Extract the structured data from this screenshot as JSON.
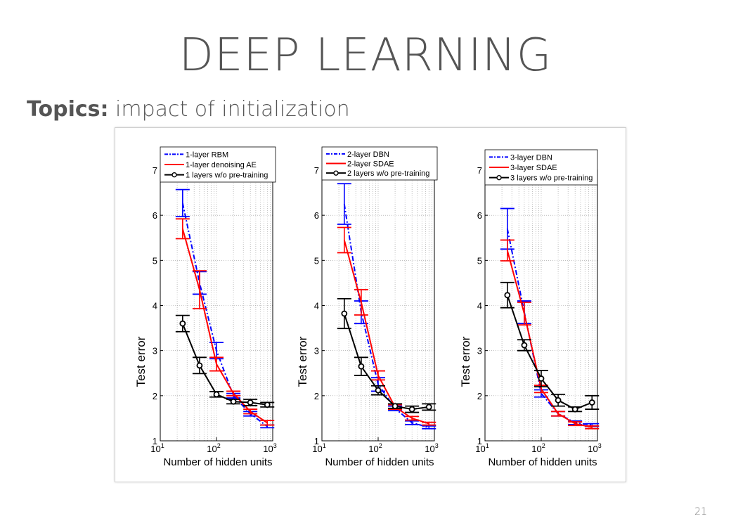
{
  "slide": {
    "title": "DEEP LEARNING",
    "topics_label": "Topics:",
    "topics_text": "impact of initialization",
    "page_number": "21"
  },
  "colors": {
    "blue": "#0000ff",
    "red": "#ff0000",
    "black": "#000000",
    "text_gray": "#555555"
  },
  "chart_data": [
    {
      "type": "line",
      "xscale": "log",
      "xlim": [
        10,
        1000
      ],
      "ylim": [
        1,
        7
      ],
      "x_ticks": [
        10,
        100,
        1000
      ],
      "y_ticks": [
        1,
        2,
        3,
        4,
        5,
        6,
        7
      ],
      "xlabel": "Number of hidden units",
      "ylabel": "Test error",
      "grid": true,
      "legend_position": "top",
      "series": [
        {
          "name": "1-layer RBM",
          "color": "#0000ff",
          "style": "dashdot",
          "marker": "none",
          "x": [
            25,
            50,
            100,
            200,
            400,
            800
          ],
          "y": [
            6.27,
            4.5,
            3.0,
            2.0,
            1.6,
            1.32
          ],
          "err": [
            0.3,
            0.25,
            0.18,
            0.05,
            0.05,
            0.03
          ]
        },
        {
          "name": "1-layer denoising AE",
          "color": "#ff0000",
          "style": "solid",
          "marker": "none",
          "x": [
            25,
            50,
            100,
            200,
            400,
            800
          ],
          "y": [
            5.7,
            4.35,
            2.7,
            2.05,
            1.65,
            1.4
          ],
          "err": [
            0.22,
            0.42,
            0.15,
            0.05,
            0.05,
            0.05
          ]
        },
        {
          "name": "1 layers w/o pre-training",
          "color": "#000000",
          "style": "solid",
          "marker": "circle",
          "x": [
            25,
            50,
            100,
            200,
            400,
            800
          ],
          "y": [
            3.6,
            2.67,
            2.03,
            1.87,
            1.85,
            1.8
          ],
          "err": [
            0.18,
            0.18,
            0.06,
            0.05,
            0.07,
            0.05
          ]
        }
      ]
    },
    {
      "type": "line",
      "xscale": "log",
      "xlim": [
        10,
        1000
      ],
      "ylim": [
        1,
        7
      ],
      "x_ticks": [
        10,
        100,
        1000
      ],
      "y_ticks": [
        1,
        2,
        3,
        4,
        5,
        6,
        7
      ],
      "xlabel": "Number of hidden units",
      "ylabel": "Test error",
      "grid": true,
      "legend_position": "top",
      "series": [
        {
          "name": "2-layer DBN",
          "color": "#0000ff",
          "style": "dashdot",
          "marker": "none",
          "x": [
            25,
            50,
            100,
            200,
            400,
            800
          ],
          "y": [
            6.25,
            3.85,
            2.25,
            1.72,
            1.4,
            1.3
          ],
          "err": [
            0.45,
            0.25,
            0.15,
            0.05,
            0.04,
            0.03
          ]
        },
        {
          "name": "2-layer SDAE",
          "color": "#ff0000",
          "style": "solid",
          "marker": "none",
          "x": [
            25,
            50,
            100,
            200,
            400,
            800
          ],
          "y": [
            5.45,
            4.07,
            2.45,
            1.75,
            1.5,
            1.38
          ],
          "err": [
            0.28,
            0.28,
            0.1,
            0.05,
            0.04,
            0.03
          ]
        },
        {
          "name": "2 layers w/o pre-training",
          "color": "#000000",
          "style": "solid",
          "marker": "circle",
          "x": [
            25,
            50,
            100,
            200,
            400,
            800
          ],
          "y": [
            3.82,
            2.65,
            2.12,
            1.77,
            1.7,
            1.75
          ],
          "err": [
            0.33,
            0.2,
            0.1,
            0.05,
            0.07,
            0.07
          ]
        }
      ]
    },
    {
      "type": "line",
      "xscale": "log",
      "xlim": [
        10,
        1000
      ],
      "ylim": [
        1,
        7
      ],
      "x_ticks": [
        10,
        100,
        1000
      ],
      "y_ticks": [
        1,
        2,
        3,
        4,
        5,
        6,
        7
      ],
      "xlabel": "Number of hidden units",
      "ylabel": "Test error",
      "grid": true,
      "legend_position": "top",
      "series": [
        {
          "name": "3-layer DBN",
          "color": "#0000ff",
          "style": "dashdot",
          "marker": "none",
          "x": [
            25,
            50,
            100,
            200,
            400,
            800
          ],
          "y": [
            5.7,
            3.85,
            2.05,
            1.6,
            1.4,
            1.35
          ],
          "err": [
            0.45,
            0.25,
            0.08,
            0.05,
            0.04,
            0.03
          ]
        },
        {
          "name": "3-layer SDAE",
          "color": "#ff0000",
          "style": "solid",
          "marker": "none",
          "x": [
            25,
            50,
            100,
            200,
            400,
            800
          ],
          "y": [
            5.22,
            3.82,
            2.15,
            1.6,
            1.38,
            1.3
          ],
          "err": [
            0.23,
            0.25,
            0.08,
            0.05,
            0.04,
            0.03
          ]
        },
        {
          "name": "3 layers w/o pre-training",
          "color": "#000000",
          "style": "solid",
          "marker": "circle",
          "x": [
            25,
            50,
            100,
            200,
            400,
            800
          ],
          "y": [
            4.23,
            3.12,
            2.38,
            1.9,
            1.7,
            1.85
          ],
          "err": [
            0.28,
            0.12,
            0.18,
            0.13,
            0.05,
            0.15
          ]
        }
      ]
    }
  ]
}
